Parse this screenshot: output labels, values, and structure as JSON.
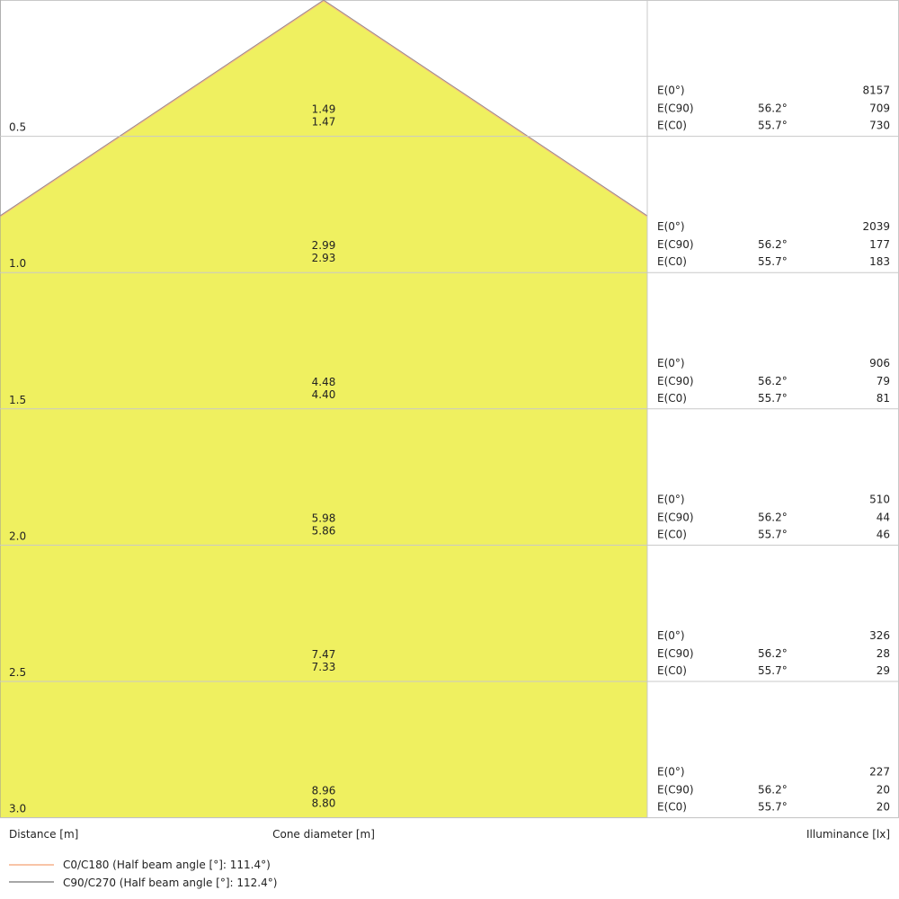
{
  "chart_data": {
    "type": "cone-diagram",
    "colors": {
      "cone_fill": "#eff060",
      "c0_line": "#f5b08a",
      "c90_line": "#8a8a8a",
      "grid": "#c8c8c8"
    },
    "xlabel": "Distance [m]",
    "center_label": "Cone diameter [m]",
    "ylabel": "Illuminance [lx]",
    "row_labels": {
      "e0": "E(0°)",
      "ec90": "E(C90)",
      "ec0": "E(C0)"
    },
    "rows": [
      {
        "distance": "0.5",
        "d_c90": "1.49",
        "d_c0": "1.47",
        "e0": "8157",
        "angle_c90": "56.2°",
        "e_c90": "709",
        "angle_c0": "55.7°",
        "e_c0": "730"
      },
      {
        "distance": "1.0",
        "d_c90": "2.99",
        "d_c0": "2.93",
        "e0": "2039",
        "angle_c90": "56.2°",
        "e_c90": "177",
        "angle_c0": "55.7°",
        "e_c0": "183"
      },
      {
        "distance": "1.5",
        "d_c90": "4.48",
        "d_c0": "4.40",
        "e0": "906",
        "angle_c90": "56.2°",
        "e_c90": "79",
        "angle_c0": "55.7°",
        "e_c0": "81"
      },
      {
        "distance": "2.0",
        "d_c90": "5.98",
        "d_c0": "5.86",
        "e0": "510",
        "angle_c90": "56.2°",
        "e_c90": "44",
        "angle_c0": "55.7°",
        "e_c0": "46"
      },
      {
        "distance": "2.5",
        "d_c90": "7.47",
        "d_c0": "7.33",
        "e0": "326",
        "angle_c90": "56.2°",
        "e_c90": "28",
        "angle_c0": "55.7°",
        "e_c0": "29"
      },
      {
        "distance": "3.0",
        "d_c90": "8.96",
        "d_c0": "8.80",
        "e0": "227",
        "angle_c90": "56.2°",
        "e_c90": "20",
        "angle_c0": "55.7°",
        "e_c0": "20"
      }
    ],
    "legend": [
      {
        "name": "C0/C180 (Half beam angle [°]: 111.4°)",
        "half_beam_angle": 111.4
      },
      {
        "name": "C90/C270 (Half beam angle [°]: 112.4°)",
        "half_beam_angle": 112.4
      }
    ]
  }
}
